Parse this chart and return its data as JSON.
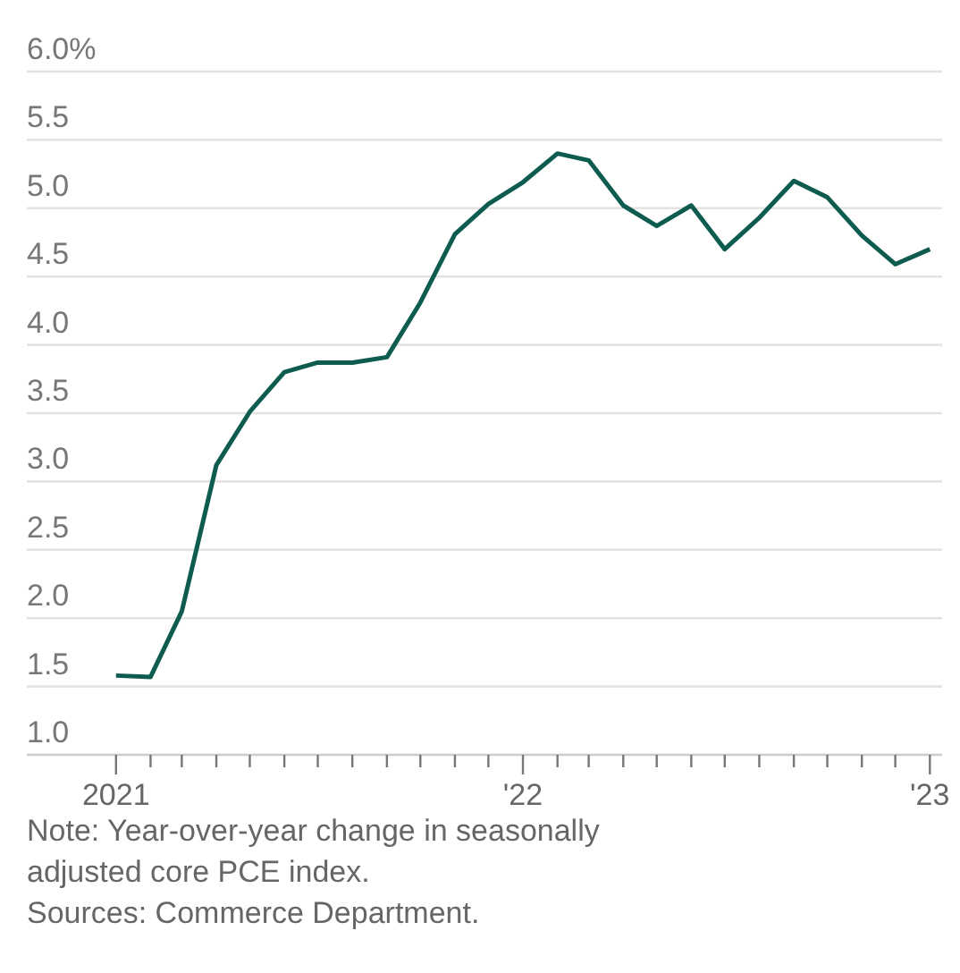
{
  "chart_data": {
    "type": "line",
    "x": [
      "2021-01",
      "2021-02",
      "2021-03",
      "2021-04",
      "2021-05",
      "2021-06",
      "2021-07",
      "2021-08",
      "2021-09",
      "2021-10",
      "2021-11",
      "2021-12",
      "2022-01",
      "2022-02",
      "2022-03",
      "2022-04",
      "2022-05",
      "2022-06",
      "2022-07",
      "2022-08",
      "2022-09",
      "2022-10",
      "2022-11",
      "2022-12",
      "2023-01"
    ],
    "series": [
      {
        "color": "#0d5c4f",
        "values": [
          1.58,
          1.57,
          2.05,
          3.12,
          3.51,
          3.8,
          3.87,
          3.87,
          3.91,
          4.31,
          4.81,
          5.03,
          5.19,
          5.4,
          5.35,
          5.02,
          4.87,
          5.02,
          4.7,
          4.93,
          5.2,
          5.08,
          4.8,
          4.59,
          4.7
        ]
      }
    ],
    "xlim": [
      "2020-10-13",
      "2023-01-12"
    ],
    "xticks": [
      {
        "value": "2021-01",
        "label": "2021"
      },
      {
        "value": "2021-02",
        "label": null
      },
      {
        "value": "2021-03",
        "label": null
      },
      {
        "value": "2021-04",
        "label": null
      },
      {
        "value": "2021-05",
        "label": null
      },
      {
        "value": "2021-06",
        "label": null
      },
      {
        "value": "2021-07",
        "label": null
      },
      {
        "value": "2021-08",
        "label": null
      },
      {
        "value": "2021-09",
        "label": null
      },
      {
        "value": "2021-10",
        "label": null
      },
      {
        "value": "2021-11",
        "label": null
      },
      {
        "value": "2021-12",
        "label": null
      },
      {
        "value": "2022-01",
        "label": "'22"
      },
      {
        "value": "2022-02",
        "label": null
      },
      {
        "value": "2022-03",
        "label": null
      },
      {
        "value": "2022-04",
        "label": null
      },
      {
        "value": "2022-05",
        "label": null
      },
      {
        "value": "2022-06",
        "label": null
      },
      {
        "value": "2022-07",
        "label": null
      },
      {
        "value": "2022-08",
        "label": null
      },
      {
        "value": "2022-09",
        "label": null
      },
      {
        "value": "2022-10",
        "label": null
      },
      {
        "value": "2022-11",
        "label": null
      },
      {
        "value": "2022-12",
        "label": null
      },
      {
        "value": "2023-01",
        "label": "'23"
      }
    ],
    "ylim": [
      1.0,
      6.0
    ],
    "yticks": [
      {
        "value": 1.0,
        "label": "1.0"
      },
      {
        "value": 1.5,
        "label": "1.5"
      },
      {
        "value": 2.0,
        "label": "2.0"
      },
      {
        "value": 2.5,
        "label": "2.5"
      },
      {
        "value": 3.0,
        "label": "3.0"
      },
      {
        "value": 3.5,
        "label": "3.5"
      },
      {
        "value": 4.0,
        "label": "4.0"
      },
      {
        "value": 4.5,
        "label": "4.5"
      },
      {
        "value": 5.0,
        "label": "5.0"
      },
      {
        "value": 5.5,
        "label": "5.5"
      },
      {
        "value": 6.0,
        "label": "6.0%"
      }
    ],
    "grid": "y",
    "marker": "none",
    "line_style": "solid",
    "annotations": [
      "Note: Year-over-year change in seasonally adjusted core PCE index.",
      "Sources: Commerce Department."
    ]
  }
}
